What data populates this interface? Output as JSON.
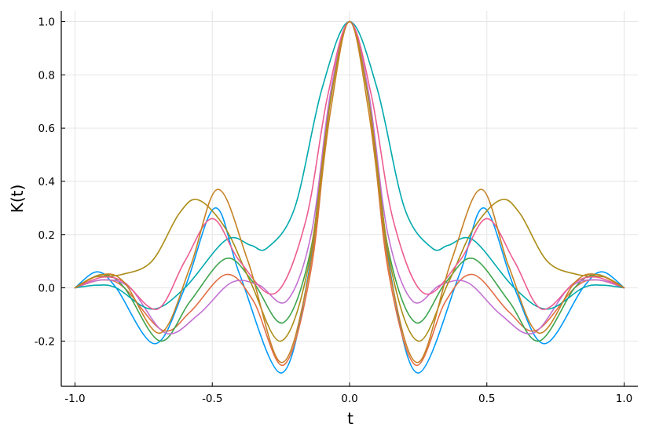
{
  "chart_data": {
    "type": "line",
    "xlabel": "t",
    "ylabel": "K(t)",
    "xlim": [
      -1.05,
      1.05
    ],
    "ylim": [
      -0.37,
      1.04
    ],
    "grid": true,
    "legend": "none",
    "x_ticks": [
      -1.0,
      -0.5,
      0.0,
      0.5,
      1.0
    ],
    "x_tick_labels": [
      "-1.0",
      "-0.5",
      "0.0",
      "0.5",
      "1.0"
    ],
    "y_ticks": [
      -0.2,
      0.0,
      0.2,
      0.4,
      0.6,
      0.8,
      1.0
    ],
    "y_tick_labels": [
      "-0.2",
      "0.0",
      "0.2",
      "0.4",
      "0.6",
      "0.8",
      "1.0"
    ],
    "series": [
      {
        "color": "#009af9",
        "x": [
          -1.0,
          -0.92,
          -0.85,
          -0.71,
          -0.6,
          -0.49,
          -0.4,
          -0.25,
          -0.15,
          -0.08,
          0.0,
          0.08,
          0.15,
          0.25,
          0.4,
          0.49,
          0.6,
          0.71,
          0.85,
          0.92,
          1.0
        ],
        "y": [
          0.0,
          0.06,
          0.0,
          -0.21,
          0.0,
          0.3,
          0.05,
          -0.32,
          0.05,
          0.65,
          1.0,
          0.65,
          0.05,
          -0.32,
          0.05,
          0.3,
          0.0,
          -0.21,
          0.0,
          0.06,
          0.0
        ]
      },
      {
        "color": "#e26f46",
        "x": [
          -1.0,
          -0.9,
          -0.82,
          -0.68,
          -0.58,
          -0.45,
          -0.35,
          -0.24,
          -0.14,
          -0.07,
          0.0,
          0.07,
          0.14,
          0.24,
          0.35,
          0.45,
          0.58,
          0.68,
          0.82,
          0.9,
          1.0
        ],
        "y": [
          0.0,
          0.03,
          0.0,
          -0.16,
          -0.09,
          0.05,
          -0.05,
          -0.29,
          0.07,
          0.7,
          1.0,
          0.7,
          0.07,
          -0.29,
          -0.05,
          0.05,
          -0.09,
          -0.16,
          0.0,
          0.03,
          0.0
        ]
      },
      {
        "color": "#3ea44e",
        "x": [
          -1.0,
          -0.9,
          -0.82,
          -0.69,
          -0.58,
          -0.45,
          -0.35,
          -0.24,
          -0.14,
          -0.07,
          0.0,
          0.07,
          0.14,
          0.24,
          0.35,
          0.45,
          0.58,
          0.69,
          0.82,
          0.9,
          1.0
        ],
        "y": [
          0.0,
          0.05,
          0.0,
          -0.2,
          -0.05,
          0.11,
          0.02,
          -0.13,
          0.15,
          0.72,
          1.0,
          0.72,
          0.15,
          -0.13,
          0.02,
          0.11,
          -0.05,
          -0.2,
          0.0,
          0.05,
          0.0
        ]
      },
      {
        "color": "#c271d2",
        "x": [
          -1.0,
          -0.9,
          -0.8,
          -0.67,
          -0.55,
          -0.43,
          -0.33,
          -0.23,
          -0.14,
          -0.07,
          0.0,
          0.07,
          0.14,
          0.23,
          0.33,
          0.43,
          0.55,
          0.67,
          0.8,
          0.9,
          1.0
        ],
        "y": [
          0.0,
          0.03,
          0.0,
          -0.17,
          -0.1,
          0.02,
          0.01,
          -0.05,
          0.2,
          0.73,
          1.0,
          0.73,
          0.2,
          -0.05,
          0.01,
          0.02,
          -0.1,
          -0.17,
          0.0,
          0.03,
          0.0
        ]
      },
      {
        "color": "#ac8d18",
        "x": [
          -1.0,
          -0.93,
          -0.83,
          -0.72,
          -0.62,
          -0.55,
          -0.45,
          -0.36,
          -0.25,
          -0.15,
          -0.07,
          0.0,
          0.07,
          0.15,
          0.25,
          0.36,
          0.45,
          0.55,
          0.62,
          0.72,
          0.83,
          0.93,
          1.0
        ],
        "y": [
          0.0,
          0.04,
          0.05,
          0.1,
          0.28,
          0.33,
          0.22,
          0.02,
          -0.2,
          0.08,
          0.7,
          1.0,
          0.7,
          0.08,
          -0.2,
          0.02,
          0.22,
          0.33,
          0.28,
          0.1,
          0.05,
          0.04,
          0.0
        ]
      },
      {
        "color": "#00a9ad",
        "x": [
          -1.0,
          -0.92,
          -0.85,
          -0.72,
          -0.6,
          -0.45,
          -0.36,
          -0.3,
          -0.2,
          -0.1,
          0.0,
          0.1,
          0.2,
          0.3,
          0.36,
          0.45,
          0.6,
          0.72,
          0.85,
          0.92,
          1.0
        ],
        "y": [
          0.0,
          0.01,
          0.0,
          -0.08,
          0.0,
          0.18,
          0.16,
          0.15,
          0.3,
          0.75,
          1.0,
          0.75,
          0.3,
          0.15,
          0.16,
          0.18,
          0.0,
          -0.08,
          0.0,
          0.01,
          0.0
        ]
      },
      {
        "color": "#ed5d92",
        "x": [
          -1.0,
          -0.9,
          -0.82,
          -0.7,
          -0.6,
          -0.5,
          -0.4,
          -0.27,
          -0.16,
          -0.08,
          0.0,
          0.08,
          0.16,
          0.27,
          0.4,
          0.5,
          0.6,
          0.7,
          0.82,
          0.9,
          1.0
        ],
        "y": [
          0.0,
          0.04,
          0.02,
          -0.08,
          0.1,
          0.26,
          0.1,
          -0.02,
          0.25,
          0.72,
          1.0,
          0.72,
          0.25,
          -0.02,
          0.1,
          0.26,
          0.1,
          -0.08,
          0.02,
          0.04,
          0.0
        ]
      },
      {
        "color": "#c68225",
        "x": [
          -1.0,
          -0.9,
          -0.82,
          -0.69,
          -0.58,
          -0.48,
          -0.37,
          -0.25,
          -0.15,
          -0.07,
          0.0,
          0.07,
          0.15,
          0.25,
          0.37,
          0.48,
          0.58,
          0.69,
          0.82,
          0.9,
          1.0
        ],
        "y": [
          0.0,
          0.05,
          0.02,
          -0.17,
          0.08,
          0.37,
          0.1,
          -0.28,
          0.04,
          0.66,
          1.0,
          0.66,
          0.04,
          -0.28,
          0.1,
          0.37,
          0.08,
          -0.17,
          0.02,
          0.05,
          0.0
        ]
      }
    ]
  }
}
